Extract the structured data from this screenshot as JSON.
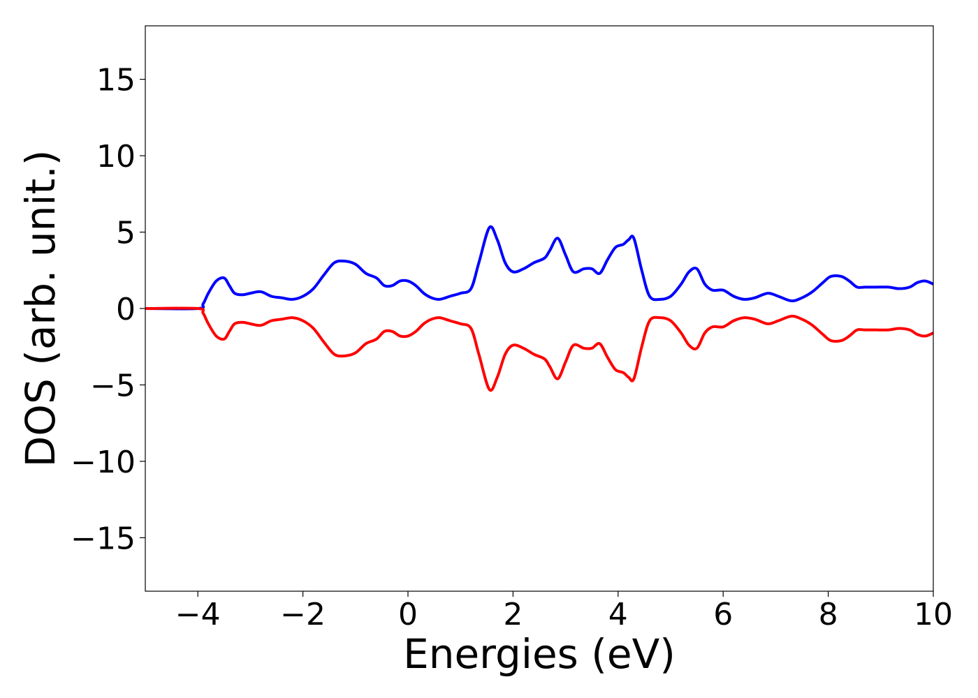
{
  "chart_data": {
    "type": "line",
    "title": "",
    "xlabel": "Energies (eV)",
    "ylabel": "DOS (arb. unit.)",
    "xlim": [
      -5,
      10
    ],
    "ylim": [
      -18.5,
      18.5
    ],
    "grid": false,
    "legend": "none",
    "xticks": [
      -4,
      -2,
      0,
      2,
      4,
      6,
      8,
      10
    ],
    "xtick_labels": [
      "−4",
      "−2",
      "0",
      "2",
      "4",
      "6",
      "8",
      "10"
    ],
    "yticks": [
      -15,
      -10,
      -5,
      0,
      5,
      10,
      15
    ],
    "ytick_labels": [
      "−15",
      "−10",
      "−5",
      "0",
      "5",
      "10",
      "15"
    ],
    "series": [
      {
        "color": "#0000ff",
        "x": [
          -5.0,
          -4.0,
          -3.9,
          -3.8,
          -3.65,
          -3.5,
          -3.4,
          -3.3,
          -3.15,
          -3.0,
          -2.8,
          -2.6,
          -2.4,
          -2.2,
          -2.0,
          -1.8,
          -1.6,
          -1.4,
          -1.2,
          -1.0,
          -0.8,
          -0.6,
          -0.45,
          -0.3,
          -0.15,
          0.0,
          0.15,
          0.3,
          0.45,
          0.6,
          0.8,
          1.0,
          1.2,
          1.35,
          1.55,
          1.7,
          1.85,
          2.0,
          2.2,
          2.4,
          2.6,
          2.7,
          2.85,
          3.0,
          3.15,
          3.35,
          3.5,
          3.65,
          3.8,
          3.95,
          4.1,
          4.2,
          4.3,
          4.45,
          4.6,
          4.8,
          5.0,
          5.2,
          5.35,
          5.5,
          5.65,
          5.8,
          6.0,
          6.2,
          6.4,
          6.6,
          6.85,
          7.05,
          7.3,
          7.5,
          7.7,
          7.9,
          8.05,
          8.25,
          8.4,
          8.55,
          8.7,
          8.9,
          9.15,
          9.35,
          9.55,
          9.7,
          9.85,
          10.0
        ],
        "values": [
          0.0,
          0.0,
          0.3,
          1.0,
          1.8,
          2.0,
          1.5,
          1.0,
          0.9,
          1.0,
          1.1,
          0.8,
          0.7,
          0.6,
          0.8,
          1.3,
          2.2,
          3.0,
          3.1,
          2.9,
          2.3,
          2.0,
          1.5,
          1.5,
          1.8,
          1.8,
          1.5,
          1.0,
          0.7,
          0.6,
          0.8,
          1.0,
          1.3,
          3.0,
          5.3,
          4.5,
          3.0,
          2.4,
          2.6,
          3.0,
          3.3,
          3.8,
          4.6,
          3.5,
          2.4,
          2.6,
          2.6,
          2.3,
          3.2,
          4.0,
          4.2,
          4.5,
          4.6,
          2.5,
          0.8,
          0.6,
          0.8,
          1.6,
          2.4,
          2.6,
          1.6,
          1.2,
          1.2,
          0.8,
          0.6,
          0.7,
          1.0,
          0.8,
          0.5,
          0.7,
          1.1,
          1.7,
          2.1,
          2.1,
          1.8,
          1.4,
          1.4,
          1.4,
          1.4,
          1.3,
          1.4,
          1.7,
          1.8,
          1.6
        ]
      },
      {
        "color": "#ff0000",
        "x": [
          -5.0,
          -4.0,
          -3.9,
          -3.8,
          -3.65,
          -3.5,
          -3.4,
          -3.3,
          -3.15,
          -3.0,
          -2.8,
          -2.6,
          -2.4,
          -2.2,
          -2.0,
          -1.8,
          -1.6,
          -1.4,
          -1.2,
          -1.0,
          -0.8,
          -0.6,
          -0.45,
          -0.3,
          -0.15,
          0.0,
          0.15,
          0.3,
          0.45,
          0.6,
          0.8,
          1.0,
          1.2,
          1.35,
          1.55,
          1.7,
          1.85,
          2.0,
          2.2,
          2.4,
          2.6,
          2.7,
          2.85,
          3.0,
          3.15,
          3.35,
          3.5,
          3.65,
          3.8,
          3.95,
          4.1,
          4.2,
          4.3,
          4.45,
          4.6,
          4.8,
          5.0,
          5.2,
          5.35,
          5.5,
          5.65,
          5.8,
          6.0,
          6.2,
          6.4,
          6.6,
          6.85,
          7.05,
          7.3,
          7.5,
          7.7,
          7.9,
          8.05,
          8.25,
          8.4,
          8.55,
          8.7,
          8.9,
          9.15,
          9.35,
          9.55,
          9.7,
          9.85,
          10.0
        ],
        "values": [
          0.0,
          0.0,
          -0.3,
          -1.0,
          -1.8,
          -2.0,
          -1.5,
          -1.0,
          -0.9,
          -1.0,
          -1.1,
          -0.8,
          -0.7,
          -0.6,
          -0.8,
          -1.3,
          -2.2,
          -3.0,
          -3.1,
          -2.9,
          -2.3,
          -2.0,
          -1.5,
          -1.5,
          -1.8,
          -1.8,
          -1.5,
          -1.0,
          -0.7,
          -0.6,
          -0.8,
          -1.0,
          -1.3,
          -3.0,
          -5.3,
          -4.5,
          -3.0,
          -2.4,
          -2.6,
          -3.0,
          -3.3,
          -3.8,
          -4.6,
          -3.5,
          -2.4,
          -2.6,
          -2.6,
          -2.3,
          -3.2,
          -4.0,
          -4.2,
          -4.5,
          -4.6,
          -2.5,
          -0.8,
          -0.6,
          -0.8,
          -1.6,
          -2.4,
          -2.6,
          -1.6,
          -1.2,
          -1.2,
          -0.8,
          -0.6,
          -0.7,
          -1.0,
          -0.8,
          -0.5,
          -0.7,
          -1.1,
          -1.7,
          -2.1,
          -2.1,
          -1.8,
          -1.4,
          -1.4,
          -1.4,
          -1.4,
          -1.3,
          -1.4,
          -1.7,
          -1.8,
          -1.6
        ]
      }
    ]
  }
}
